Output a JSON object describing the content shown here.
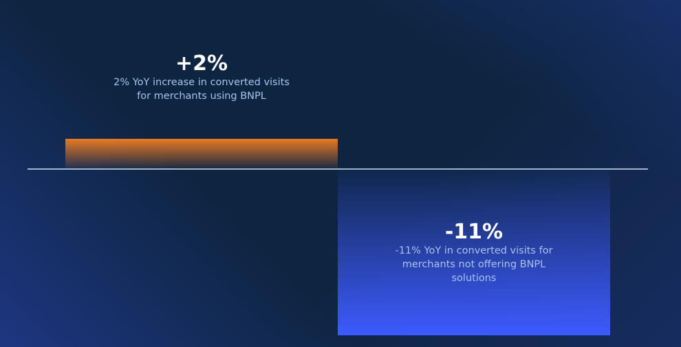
{
  "chart_data": {
    "type": "bar",
    "categories": [
      "Merchants using BNPL",
      "Merchants not offering BNPL"
    ],
    "values": [
      2,
      -11
    ],
    "unit": "%",
    "data_labels": [
      "+2%",
      "-11%"
    ],
    "annotations": [
      "2% YoY increase in converted visits for merchants using BNPL",
      "-11% YoY in converted visits for merchants not offering BNPL solutions"
    ],
    "title": "",
    "xlabel": "",
    "ylabel": "",
    "ylim": [
      -11,
      2
    ],
    "grid": false,
    "legend": "none",
    "colors": {
      "positive": "#e87a24",
      "negative": "#3d5afe",
      "background": "#0e2542",
      "baseline": "#cfe3f5"
    }
  }
}
